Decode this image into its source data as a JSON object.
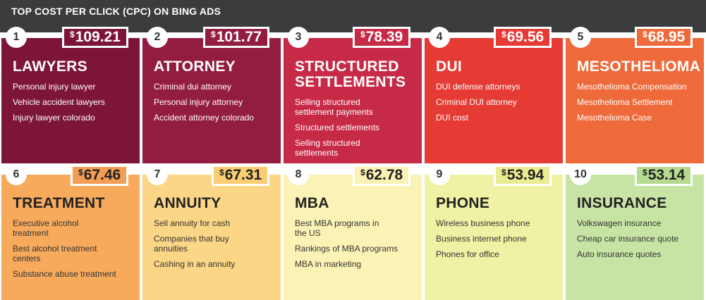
{
  "title": "TOP COST PER CLICK (CPC) ON BING ADS",
  "currency": "$",
  "rows": [
    {
      "cards": [
        {
          "rank": "1",
          "amount": "109.21",
          "heading": "LAWYERS",
          "items": [
            "Personal injury lawyer",
            "Vehicle accident lawyers",
            "Injury lawyer colorado"
          ],
          "bg": "#7d1537",
          "price_bg": "#7d1537",
          "theme": "dark"
        },
        {
          "rank": "2",
          "amount": "101.77",
          "heading": "ATTORNEY",
          "items": [
            "Criminal dui attorney",
            "Personal injury attorney",
            "Accident attorney colorado"
          ],
          "bg": "#931d41",
          "price_bg": "#931d41",
          "theme": "dark"
        },
        {
          "rank": "3",
          "amount": "78.39",
          "heading": "STRUCTURED SETTLEMENTS",
          "items": [
            "Selling structured settlement payments",
            "Structured settlements",
            "Selling structured settlements"
          ],
          "bg": "#c72a47",
          "price_bg": "#c72a47",
          "theme": "dark"
        },
        {
          "rank": "4",
          "amount": "69.56",
          "heading": "DUI",
          "items": [
            "DUI defense attorneys",
            "Criminal DUI attorney",
            "DUI cost"
          ],
          "bg": "#e63b34",
          "price_bg": "#e63b34",
          "theme": "dark"
        },
        {
          "rank": "5",
          "amount": "68.95",
          "heading": "MESOTHELIOMA",
          "items": [
            "Mesothelioma Compensation",
            "Mesothelioma Settlement",
            "Mesothelioma Case"
          ],
          "bg": "#ee6a3a",
          "price_bg": "#ee6a3a",
          "theme": "dark"
        }
      ]
    },
    {
      "cards": [
        {
          "rank": "6",
          "amount": "67.46",
          "heading": "TREATMENT",
          "items": [
            "Executive alcohol treatment",
            "Best alcohol treatment centers",
            "Substance abuse treatment"
          ],
          "bg": "#f7aa5c",
          "price_bg": "#f49d55",
          "theme": "light"
        },
        {
          "rank": "7",
          "amount": "67.31",
          "heading": "ANNUITY",
          "items": [
            "Sell annuity for cash",
            "Companies that buy annuities",
            "Cashing in an annuity"
          ],
          "bg": "#fbd686",
          "price_bg": "#fbce73",
          "theme": "light"
        },
        {
          "rank": "8",
          "amount": "62.78",
          "heading": "MBA",
          "items": [
            "Best MBA programs in the US",
            "Rankings of MBA programs",
            "MBA in marketing"
          ],
          "bg": "#fbf3b5",
          "price_bg": "#fbf3b5",
          "theme": "light"
        },
        {
          "rank": "9",
          "amount": "53.94",
          "heading": "PHONE",
          "items": [
            "Wireless business phone",
            "Business internet phone",
            "Phones for office"
          ],
          "bg": "#eff1a4",
          "price_bg": "#e9ec90",
          "theme": "light"
        },
        {
          "rank": "10",
          "amount": "53.14",
          "heading": "INSURANCE",
          "items": [
            "Volkswagen insurance",
            "Cheap car insurance quote",
            "Auto insurance quotes"
          ],
          "bg": "#c8e4a5",
          "price_bg": "#b5da90",
          "theme": "light"
        }
      ]
    }
  ]
}
